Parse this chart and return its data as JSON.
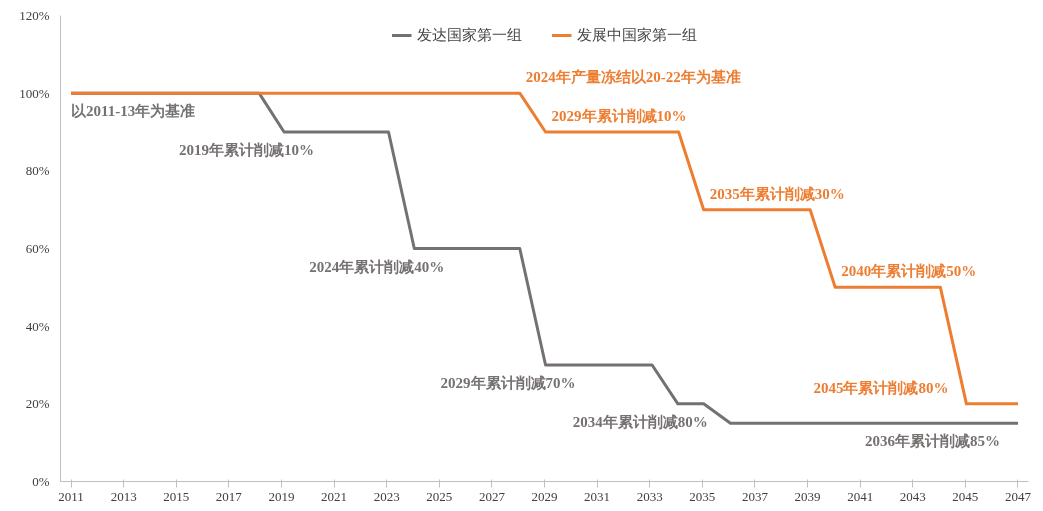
{
  "chart_data": {
    "type": "line",
    "xlim": [
      2010.6,
      2047.4
    ],
    "ylim": [
      0,
      120
    ],
    "xticks": [
      2011,
      2013,
      2015,
      2017,
      2019,
      2021,
      2023,
      2025,
      2027,
      2029,
      2031,
      2033,
      2035,
      2037,
      2039,
      2041,
      2043,
      2045,
      2047
    ],
    "yticks": [
      {
        "value": 0,
        "label": "0%"
      },
      {
        "value": 20,
        "label": "20%"
      },
      {
        "value": 40,
        "label": "40%"
      },
      {
        "value": 60,
        "label": "60%"
      },
      {
        "value": 80,
        "label": "80%"
      },
      {
        "value": 100,
        "label": "100%"
      },
      {
        "value": 120,
        "label": "120%"
      }
    ],
    "series": [
      {
        "name": "发达国家第一组",
        "color": "#767171",
        "x": [
          2011,
          2018.15,
          2019.1,
          2023.07,
          2024.05,
          2028.06,
          2029.04,
          2033.09,
          2034.07,
          2035.05,
          2036.07,
          2047
        ],
        "values": [
          100,
          100,
          90,
          90,
          60,
          60,
          30,
          30,
          20,
          20,
          15,
          15
        ]
      },
      {
        "name": "发展中国家第一组",
        "color": "#ed7d31",
        "x": [
          2011,
          2028.06,
          2029.04,
          2034.1,
          2035.05,
          2039.1,
          2040.05,
          2044.05,
          2045.04,
          2047
        ],
        "values": [
          100,
          100,
          90,
          90,
          70,
          70,
          50,
          50,
          20,
          20
        ]
      }
    ],
    "annotations": [
      {
        "text": "2024年产量冻结以20-22年为基准",
        "x": 2028.06,
        "y": 100
      },
      {
        "text": "以2011-13年为基准",
        "x": 2011,
        "y": 100
      },
      {
        "text": "2019年累计削减10%",
        "x": 2019.1,
        "y": 90
      },
      {
        "text": "2029年累计削减10%",
        "x": 2029.04,
        "y": 90
      },
      {
        "text": "2035年累计削减30%",
        "x": 2035.05,
        "y": 70
      },
      {
        "text": "2024年累计削减40%",
        "x": 2024.05,
        "y": 60
      },
      {
        "text": "2040年累计削减50%",
        "x": 2040.05,
        "y": 50
      },
      {
        "text": "2029年累计削减70%",
        "x": 2029.04,
        "y": 30
      },
      {
        "text": "2045年累计削减80%",
        "x": 2045.04,
        "y": 20
      },
      {
        "text": "2034年累计削减80%",
        "x": 2034.07,
        "y": 20
      },
      {
        "text": "2036年累计削减85%",
        "x": 2047,
        "y": 15
      }
    ],
    "legend": "top",
    "grid": false,
    "marker": "none",
    "line_style": "solid"
  }
}
